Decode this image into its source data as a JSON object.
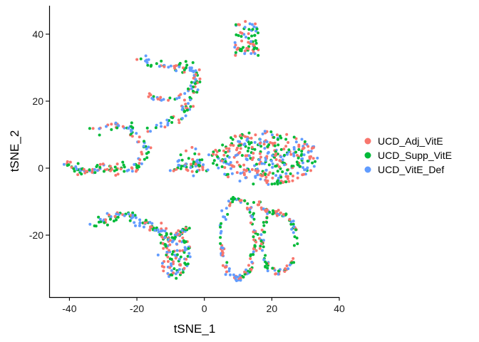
{
  "chart_data": {
    "type": "scatter",
    "title": "",
    "xlabel": "tSNE_1",
    "ylabel": "tSNE_2",
    "xlim": [
      -46,
      40
    ],
    "ylim": [
      -38.5,
      48.5
    ],
    "xticks": [
      -40,
      -20,
      0,
      20,
      40
    ],
    "yticks": [
      -20,
      0,
      20,
      40
    ],
    "xtick_labels": [
      "-40",
      "-20",
      "0",
      "20",
      "40"
    ],
    "ytick_labels": [
      "-20",
      "0",
      "20",
      "40"
    ],
    "grid": false,
    "legend_position": "right",
    "series": [
      {
        "name": "UCD_Adj_VitE",
        "color": "#F8766D"
      },
      {
        "name": "UCD_Supp_VitE",
        "color": "#00BA38"
      },
      {
        "name": "UCD_VitE_Def",
        "color": "#619CFF"
      }
    ],
    "clusters": [
      {
        "shape": "rect",
        "x": [
          9,
          16
        ],
        "y": [
          33,
          44
        ],
        "n": 70
      },
      {
        "shape": "poly",
        "pts": [
          [
            -20,
            33
          ],
          [
            -13,
            31
          ],
          [
            -7,
            30
          ],
          [
            -2,
            29
          ],
          [
            -3,
            22
          ],
          [
            -5,
            17
          ],
          [
            -12,
            13
          ],
          [
            -17,
            11
          ]
        ],
        "width": 2.4,
        "n": 110
      },
      {
        "shape": "poly",
        "pts": [
          [
            -17,
            22
          ],
          [
            -12,
            20
          ],
          [
            -5,
            22
          ],
          [
            -3,
            25
          ]
        ],
        "width": 1.6,
        "n": 28
      },
      {
        "shape": "poly",
        "pts": [
          [
            -34,
            11
          ],
          [
            -27,
            13
          ],
          [
            -22,
            12
          ],
          [
            -20,
            9
          ],
          [
            -17,
            6
          ],
          [
            -18,
            2
          ],
          [
            -21,
            0
          ],
          [
            -25,
            0
          ]
        ],
        "width": 2.2,
        "n": 80
      },
      {
        "shape": "poly",
        "pts": [
          [
            -42,
            2
          ],
          [
            -38,
            0
          ],
          [
            -34,
            -1
          ],
          [
            -30,
            0
          ],
          [
            -26,
            -1
          ]
        ],
        "width": 2.0,
        "n": 60
      },
      {
        "shape": "ellipse",
        "cx": 18,
        "cy": 3,
        "rx": 16,
        "ry": 8,
        "n": 360
      },
      {
        "shape": "ellipse",
        "cx": -3,
        "cy": 2,
        "rx": 5,
        "ry": 4.5,
        "n": 40
      },
      {
        "shape": "poly",
        "pts": [
          [
            -10,
            -1
          ],
          [
            -6,
            1
          ],
          [
            -2,
            2
          ],
          [
            0,
            0
          ]
        ],
        "width": 1.5,
        "n": 25
      },
      {
        "shape": "poly",
        "pts": [
          [
            -33,
            -17
          ],
          [
            -28,
            -15
          ],
          [
            -22,
            -14
          ],
          [
            -18,
            -16
          ],
          [
            -14,
            -18
          ],
          [
            -12,
            -20
          ]
        ],
        "width": 2.4,
        "n": 90
      },
      {
        "shape": "ellipse",
        "cx": -9,
        "cy": -26,
        "rx": 5,
        "ry": 7,
        "n": 110
      },
      {
        "shape": "poly",
        "pts": [
          [
            -10,
            -23
          ],
          [
            -8,
            -20
          ],
          [
            -6,
            -19
          ],
          [
            -5,
            -18
          ]
        ],
        "width": 1.6,
        "n": 25
      },
      {
        "shape": "ring",
        "cx": 10,
        "cy": -21,
        "rx": 5,
        "ry": 12,
        "width": 1.3,
        "n": 120
      },
      {
        "shape": "ring",
        "cx": 22,
        "cy": -22,
        "rx": 5,
        "ry": 9,
        "width": 1.3,
        "n": 100
      },
      {
        "shape": "poly",
        "pts": [
          [
            14,
            -10
          ],
          [
            18,
            -12
          ],
          [
            20,
            -14
          ]
        ],
        "width": 1.4,
        "n": 20
      }
    ]
  }
}
